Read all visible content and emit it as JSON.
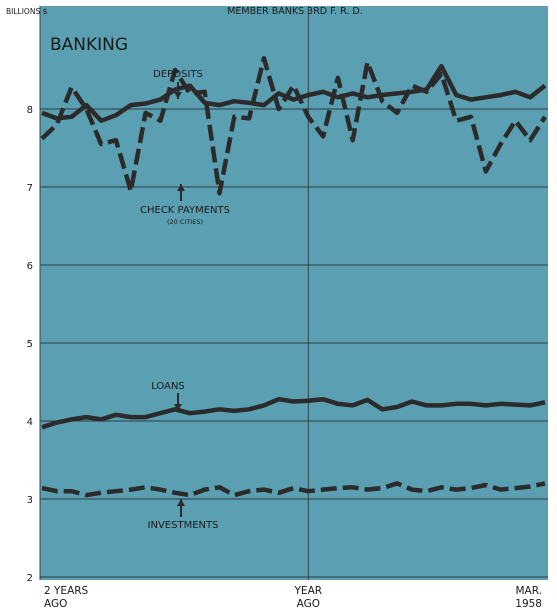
{
  "chart_data": {
    "type": "line",
    "title": "BANKING",
    "subtitle": "MEMBER BANKS 3RD F. R. D.",
    "ylabel": "BILLIONS $",
    "xlabel": "",
    "ylim": [
      2,
      9.2
    ],
    "yticks": [
      2,
      3,
      4,
      5,
      6,
      7,
      8
    ],
    "grid": true,
    "x": [
      1,
      2,
      3,
      4,
      5,
      6,
      7,
      8,
      9,
      10,
      11,
      12,
      13,
      14,
      15,
      16,
      17,
      18,
      19,
      20,
      21,
      22,
      23,
      24,
      25,
      26,
      27,
      28,
      29,
      30,
      31,
      32,
      33,
      34,
      35
    ],
    "xtick_labels": [
      {
        "x": 1,
        "line1": "2 YEARS",
        "line2": "AGO"
      },
      {
        "x": 19,
        "line1": "YEAR",
        "line2": "AGO"
      },
      {
        "x": 35,
        "line1": "MAR.",
        "line2": "1958"
      }
    ],
    "series": [
      {
        "name": "DEPOSITS",
        "style": "solid",
        "color": "#2b2b2b",
        "values": [
          7.95,
          7.88,
          7.9,
          8.05,
          7.85,
          7.92,
          8.05,
          8.07,
          8.12,
          8.25,
          8.3,
          8.08,
          8.05,
          8.1,
          8.08,
          8.05,
          8.2,
          8.12,
          8.18,
          8.22,
          8.15,
          8.2,
          8.15,
          8.18,
          8.2,
          8.22,
          8.25,
          8.55,
          8.18,
          8.12,
          8.15,
          8.18,
          8.22,
          8.15,
          8.3
        ]
      },
      {
        "name": "CHECK PAYMENTS",
        "sublabel": "(20 CITIES)",
        "style": "dashed",
        "color": "#2b2b2b",
        "values": [
          7.62,
          7.8,
          8.28,
          8.0,
          7.55,
          7.6,
          6.95,
          7.95,
          7.85,
          8.5,
          8.2,
          8.22,
          6.92,
          7.9,
          7.88,
          8.65,
          8.0,
          8.3,
          7.9,
          7.65,
          8.4,
          7.6,
          8.6,
          8.1,
          7.95,
          8.3,
          8.22,
          8.45,
          7.85,
          7.9,
          7.2,
          7.55,
          7.85,
          7.6,
          7.9
        ]
      },
      {
        "name": "LOANS",
        "style": "solid",
        "color": "#2b2b2b",
        "values": [
          3.92,
          3.98,
          4.02,
          4.05,
          4.02,
          4.08,
          4.05,
          4.05,
          4.1,
          4.15,
          4.1,
          4.12,
          4.15,
          4.13,
          4.15,
          4.2,
          4.28,
          4.25,
          4.26,
          4.28,
          4.22,
          4.2,
          4.27,
          4.15,
          4.18,
          4.25,
          4.2,
          4.2,
          4.22,
          4.22,
          4.2,
          4.22,
          4.21,
          4.2,
          4.24
        ]
      },
      {
        "name": "INVESTMENTS",
        "style": "dashed",
        "color": "#2b2b2b",
        "values": [
          3.14,
          3.1,
          3.1,
          3.05,
          3.08,
          3.1,
          3.12,
          3.15,
          3.12,
          3.08,
          3.05,
          3.12,
          3.15,
          3.05,
          3.1,
          3.12,
          3.08,
          3.14,
          3.1,
          3.12,
          3.14,
          3.15,
          3.12,
          3.14,
          3.2,
          3.12,
          3.1,
          3.15,
          3.12,
          3.14,
          3.18,
          3.12,
          3.14,
          3.16,
          3.2
        ]
      }
    ],
    "annotations": [
      {
        "text": "DEPOSITS",
        "series": "DEPOSITS"
      },
      {
        "text": "CHECK PAYMENTS",
        "sub": "(20 CITIES)",
        "series": "CHECK PAYMENTS"
      },
      {
        "text": "LOANS",
        "series": "LOANS"
      },
      {
        "text": "INVESTMENTS",
        "series": "INVESTMENTS"
      }
    ],
    "colors": {
      "background": "#5ba0b2",
      "frame": "#ffffff",
      "line": "#2b2b2b",
      "grid": "#2e3a3e"
    }
  }
}
